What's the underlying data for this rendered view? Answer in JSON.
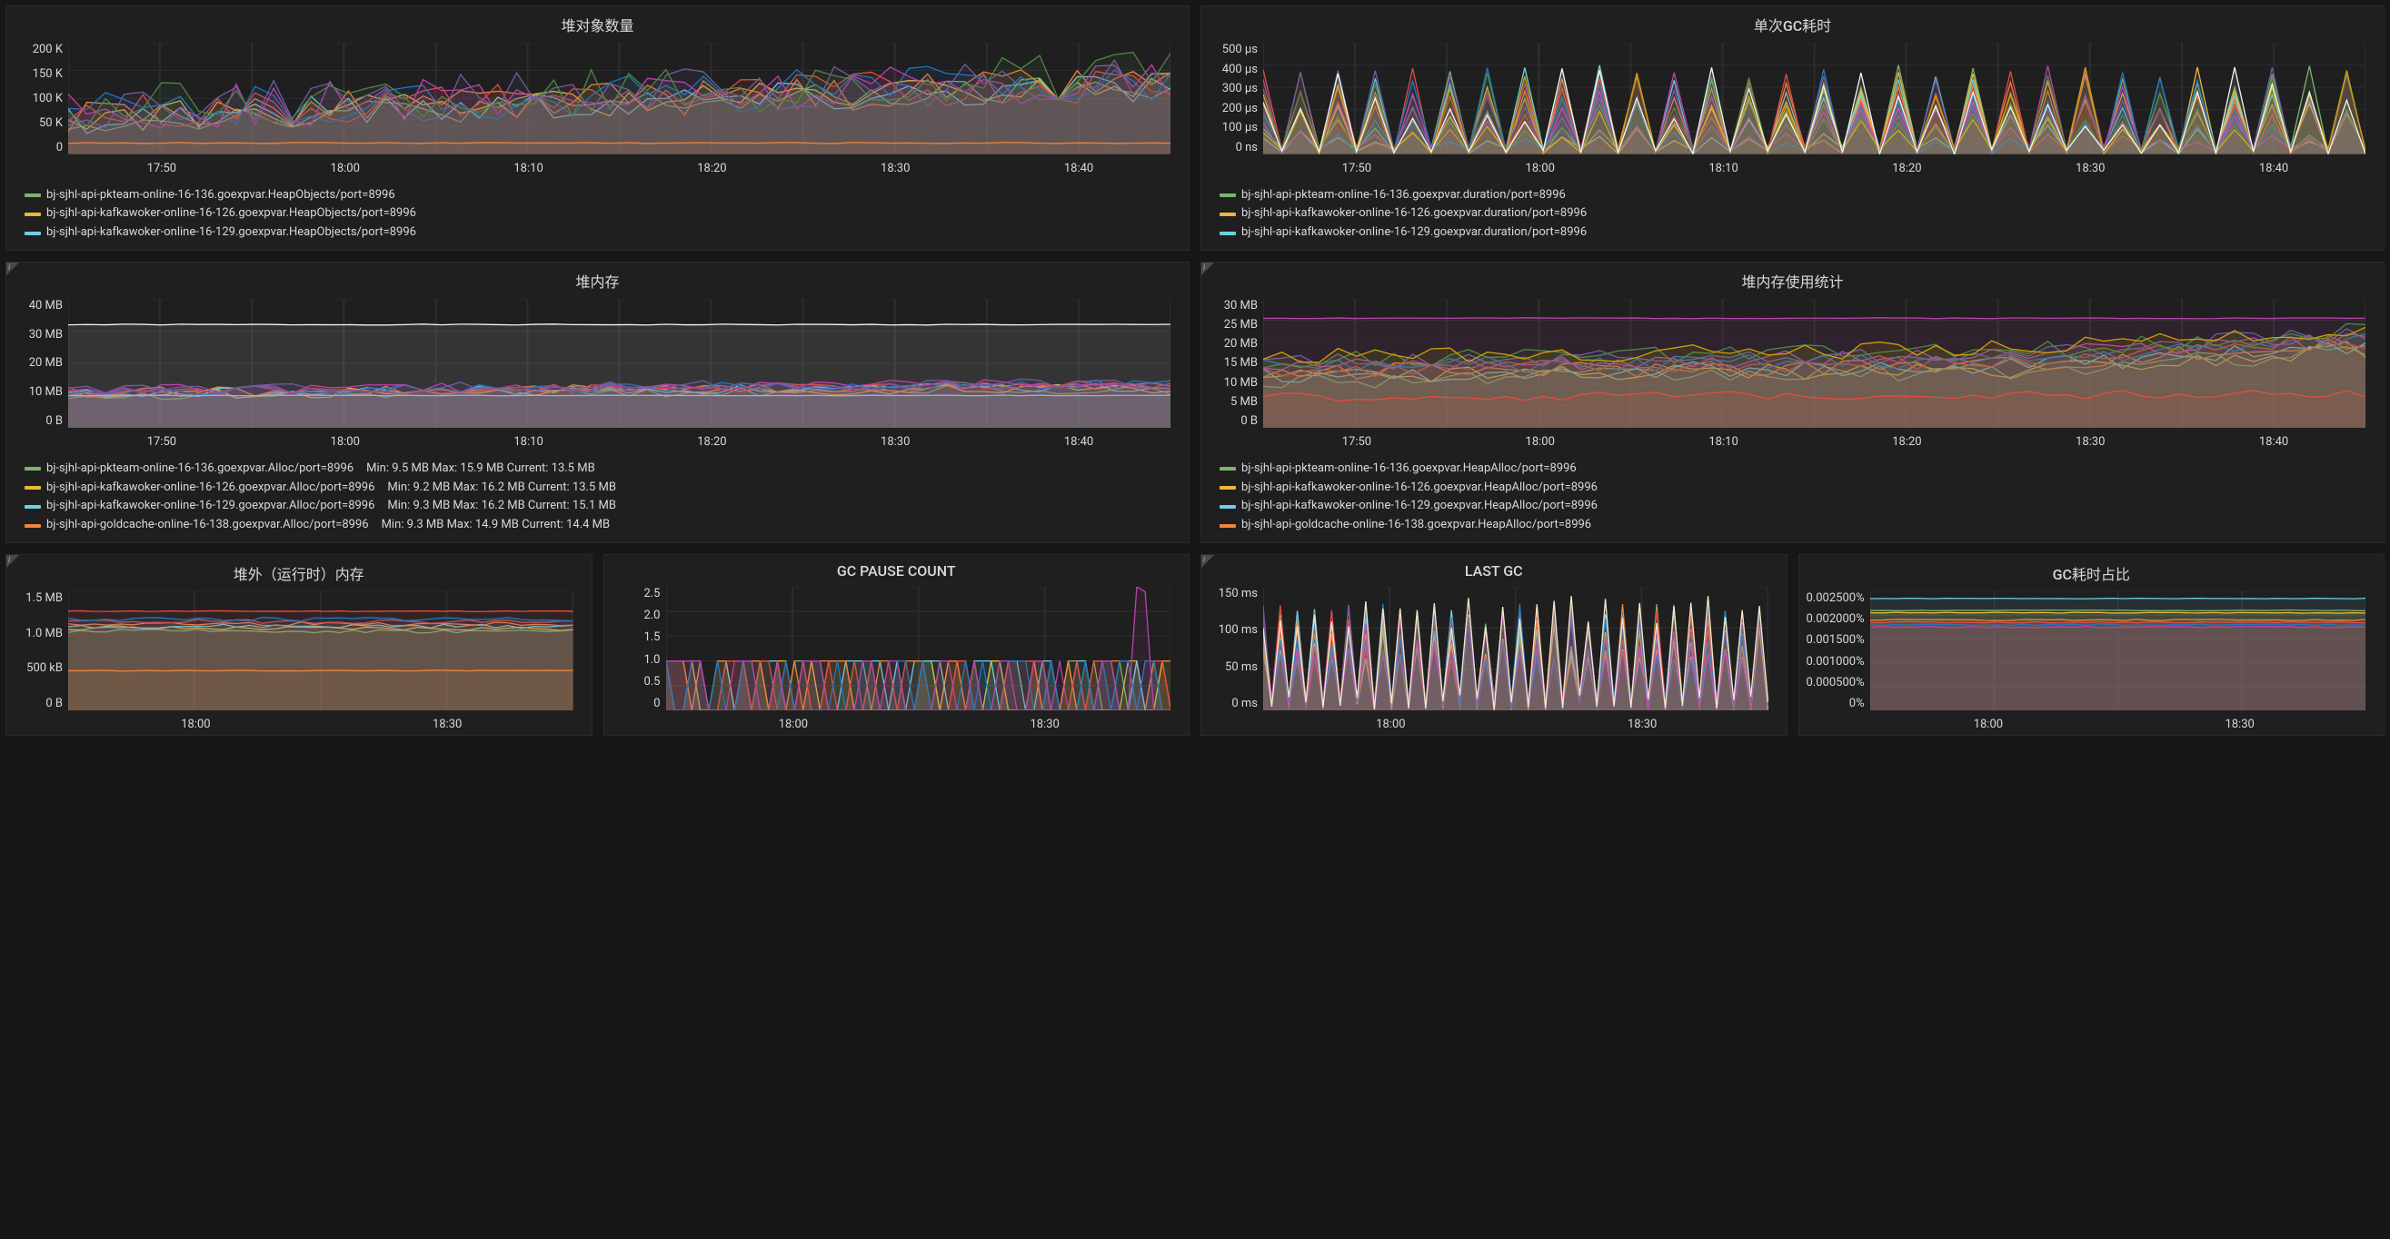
{
  "colors": {
    "bg": "#161719",
    "panel_bg": "#1f1f20",
    "grid": "#2c2c2e",
    "text": "#d8d9da",
    "series": [
      "#7eb26d",
      "#eab839",
      "#6ed0e0",
      "#ef843c",
      "#e24d42",
      "#1f78c1",
      "#ba43a9",
      "#705da0",
      "#508642",
      "#cca300"
    ]
  },
  "xticks_long": [
    "17:50",
    "18:00",
    "18:10",
    "18:20",
    "18:30",
    "18:40"
  ],
  "xticks_short": [
    "18:00",
    "18:30"
  ],
  "panels": {
    "heap_objects": {
      "title": "堆对象数量",
      "yticks": [
        "200 K",
        "150 K",
        "100 K",
        "50 K",
        "0"
      ],
      "yrange": [
        0,
        200
      ],
      "legend": [
        {
          "label": "bj-sjhl-api-pkteam-online-16-136.goexpvar.HeapObjects/port=8996",
          "color": "#7eb26d"
        },
        {
          "label": "bj-sjhl-api-kafkawoker-online-16-126.goexpvar.HeapObjects/port=8996",
          "color": "#eab839"
        },
        {
          "label": "bj-sjhl-api-kafkawoker-online-16-129.goexpvar.HeapObjects/port=8996",
          "color": "#6ed0e0"
        }
      ]
    },
    "gc_duration": {
      "title": "单次GC耗时",
      "yticks": [
        "500 μs",
        "400 μs",
        "300 μs",
        "200 μs",
        "100 μs",
        "0 ns"
      ],
      "yrange": [
        0,
        500
      ],
      "legend": [
        {
          "label": "bj-sjhl-api-pkteam-online-16-136.goexpvar.duration/port=8996",
          "color": "#7eb26d"
        },
        {
          "label": "bj-sjhl-api-kafkawoker-online-16-126.goexpvar.duration/port=8996",
          "color": "#eab839"
        },
        {
          "label": "bj-sjhl-api-kafkawoker-online-16-129.goexpvar.duration/port=8996",
          "color": "#6ed0e0"
        }
      ]
    },
    "heap_mem": {
      "title": "堆内存",
      "yticks": [
        "40 MB",
        "30 MB",
        "20 MB",
        "10 MB",
        "0 B"
      ],
      "yrange": [
        0,
        40
      ],
      "info": true,
      "legend": [
        {
          "label": "bj-sjhl-api-pkteam-online-16-136.goexpvar.Alloc/port=8996",
          "color": "#7eb26d",
          "stats": "Min: 9.5 MB  Max: 15.9 MB  Current: 13.5 MB"
        },
        {
          "label": "bj-sjhl-api-kafkawoker-online-16-126.goexpvar.Alloc/port=8996",
          "color": "#eab839",
          "stats": "Min: 9.2 MB  Max: 16.2 MB  Current: 13.5 MB"
        },
        {
          "label": "bj-sjhl-api-kafkawoker-online-16-129.goexpvar.Alloc/port=8996",
          "color": "#6ed0e0",
          "stats": "Min: 9.3 MB  Max: 16.2 MB  Current: 15.1 MB"
        },
        {
          "label": "bj-sjhl-api-goldcache-online-16-138.goexpvar.Alloc/port=8996",
          "color": "#ef843c",
          "stats": "Min: 9.3 MB  Max: 14.9 MB  Current: 14.4 MB"
        }
      ]
    },
    "heap_stats": {
      "title": "堆内存使用统计",
      "yticks": [
        "30 MB",
        "25 MB",
        "20 MB",
        "15 MB",
        "10 MB",
        "5 MB",
        "0 B"
      ],
      "yrange": [
        0,
        30
      ],
      "info": true,
      "legend": [
        {
          "label": "bj-sjhl-api-pkteam-online-16-136.goexpvar.HeapAlloc/port=8996",
          "color": "#7eb26d"
        },
        {
          "label": "bj-sjhl-api-kafkawoker-online-16-126.goexpvar.HeapAlloc/port=8996",
          "color": "#eab839"
        },
        {
          "label": "bj-sjhl-api-kafkawoker-online-16-129.goexpvar.HeapAlloc/port=8996",
          "color": "#6ed0e0"
        },
        {
          "label": "bj-sjhl-api-goldcache-online-16-138.goexpvar.HeapAlloc/port=8996",
          "color": "#ef843c"
        }
      ]
    },
    "off_heap": {
      "title": "堆外（运行时）内存",
      "yticks": [
        "1.5 MB",
        "1.0 MB",
        "500 kB",
        "0 B"
      ],
      "yrange": [
        0,
        1.5
      ],
      "info": true
    },
    "gc_pause_count": {
      "title": "GC PAUSE COUNT",
      "yticks": [
        "2.5",
        "2.0",
        "1.5",
        "1.0",
        "0.5",
        "0"
      ],
      "yrange": [
        0,
        2.5
      ]
    },
    "last_gc": {
      "title": "LAST GC",
      "yticks": [
        "150 ms",
        "100 ms",
        "50 ms",
        "0 ms"
      ],
      "yrange": [
        0,
        150
      ],
      "info": true
    },
    "gc_ratio": {
      "title": "GC耗时占比",
      "yticks": [
        "0.002500%",
        "0.002000%",
        "0.001500%",
        "0.001000%",
        "0.000500%",
        "0%"
      ],
      "yrange": [
        0,
        0.0025
      ]
    }
  }
}
